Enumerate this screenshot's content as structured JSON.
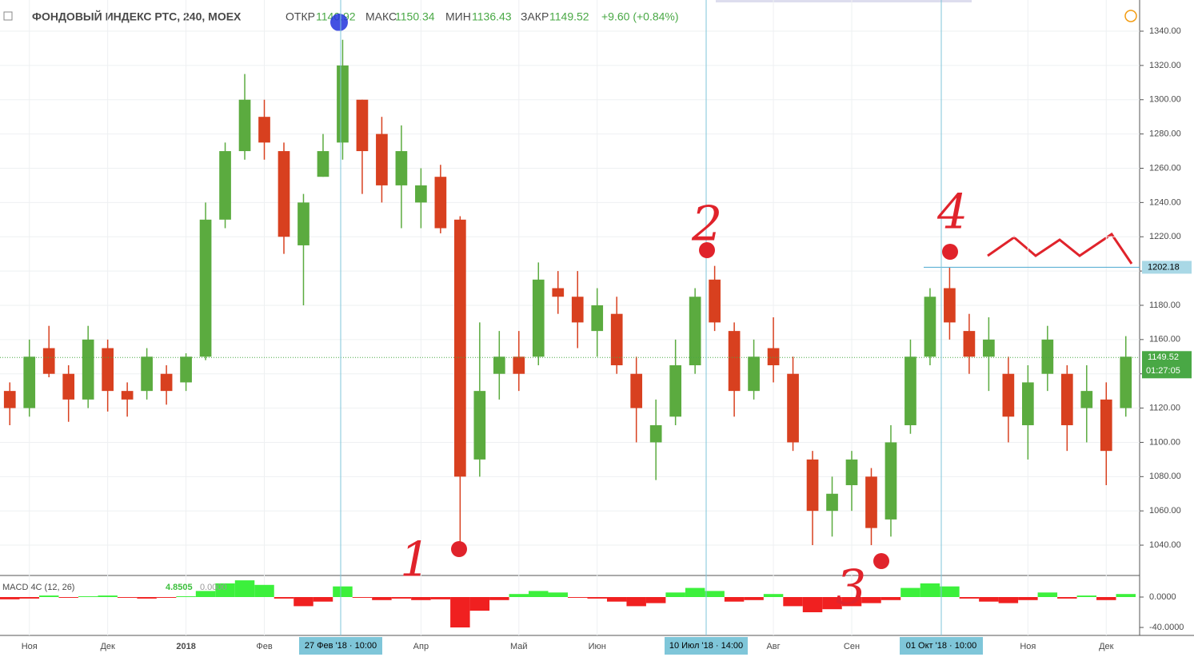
{
  "header": {
    "symbol": "ФОНДОВЫЙ ИНДЕКС РТС, 240, MOEX",
    "ohlc": [
      {
        "label": "ОТКР",
        "value": "1140.92"
      },
      {
        "label": "МАКС",
        "value": "1150.34"
      },
      {
        "label": "МИН",
        "value": "1136.43"
      },
      {
        "label": "ЗАКР",
        "value": "1149.52"
      }
    ],
    "change": "+9.60 (+0.84%)"
  },
  "chart_data": {
    "type": "candlestick",
    "categories": [
      null,
      "Ноя",
      null,
      null,
      null,
      "Дек",
      null,
      null,
      null,
      "2018",
      null,
      null,
      null,
      "Фев",
      null,
      null,
      null,
      null,
      null,
      null,
      null,
      "Апр",
      null,
      null,
      null,
      null,
      "Май",
      null,
      null,
      null,
      "Июн",
      null,
      null,
      null,
      null,
      null,
      null,
      null,
      null,
      "Авг",
      null,
      null,
      null,
      "Сен",
      null,
      null,
      null,
      null,
      null,
      null,
      null,
      null,
      "Ноя",
      null,
      null,
      null,
      "Дек",
      null
    ],
    "open": [
      1130,
      1120,
      1155,
      1140,
      1125,
      1155,
      1130,
      1130,
      1140,
      1135,
      1150,
      1230,
      1270,
      1290,
      1270,
      1215,
      1255,
      1275,
      1300,
      1280,
      1250,
      1240,
      1255,
      1230,
      1090,
      1140,
      1150,
      1150,
      1190,
      1185,
      1165,
      1175,
      1140,
      1100,
      1115,
      1145,
      1195,
      1165,
      1130,
      1155,
      1140,
      1090,
      1060,
      1075,
      1080,
      1055,
      1110,
      1150,
      1190,
      1165,
      1150,
      1140,
      1110,
      1140,
      1140,
      1120,
      1125,
      1120
    ],
    "high": [
      1135,
      1160,
      1168,
      1145,
      1168,
      1160,
      1135,
      1155,
      1145,
      1152,
      1240,
      1275,
      1315,
      1300,
      1275,
      1245,
      1280,
      1335,
      1300,
      1290,
      1285,
      1260,
      1262,
      1232,
      1170,
      1165,
      1165,
      1205,
      1200,
      1200,
      1190,
      1185,
      1150,
      1125,
      1160,
      1190,
      1203,
      1170,
      1160,
      1173,
      1150,
      1095,
      1080,
      1095,
      1085,
      1110,
      1160,
      1190,
      1202,
      1175,
      1173,
      1150,
      1145,
      1168,
      1145,
      1145,
      1135,
      1162
    ],
    "low": [
      1110,
      1115,
      1138,
      1112,
      1120,
      1118,
      1115,
      1125,
      1122,
      1130,
      1148,
      1225,
      1265,
      1265,
      1210,
      1180,
      1255,
      1265,
      1245,
      1240,
      1225,
      1225,
      1222,
      1040,
      1080,
      1125,
      1130,
      1145,
      1175,
      1155,
      1150,
      1140,
      1100,
      1078,
      1110,
      1140,
      1165,
      1115,
      1125,
      1135,
      1095,
      1040,
      1045,
      1060,
      1040,
      1045,
      1105,
      1145,
      1160,
      1140,
      1130,
      1100,
      1090,
      1130,
      1095,
      1100,
      1075,
      1115
    ],
    "close": [
      1120,
      1150,
      1140,
      1125,
      1160,
      1130,
      1125,
      1150,
      1130,
      1150,
      1230,
      1270,
      1300,
      1275,
      1220,
      1240,
      1270,
      1320,
      1270,
      1250,
      1270,
      1250,
      1225,
      1080,
      1130,
      1150,
      1140,
      1195,
      1185,
      1170,
      1180,
      1145,
      1120,
      1110,
      1145,
      1185,
      1170,
      1130,
      1150,
      1145,
      1100,
      1060,
      1070,
      1090,
      1050,
      1100,
      1150,
      1185,
      1170,
      1150,
      1160,
      1115,
      1135,
      1160,
      1110,
      1130,
      1095,
      1150
    ],
    "up_color": "#5bab3f",
    "down_color": "#d8401f",
    "ylim": [
      1022.3,
      1358.2
    ],
    "yticks": [
      {
        "value": 1040,
        "label": "1040.00"
      },
      {
        "value": 1060,
        "label": "1060.00"
      },
      {
        "value": 1080,
        "label": "1080.00"
      },
      {
        "value": 1100,
        "label": "1100.00"
      },
      {
        "value": 1120,
        "label": "1120.00"
      },
      {
        "value": 1140,
        "label": "1140.00"
      },
      {
        "value": 1160,
        "label": "1160.00"
      },
      {
        "value": 1180,
        "label": "1180.00"
      },
      {
        "value": 1200,
        "label": "1200.00"
      },
      {
        "value": 1220,
        "label": "1220.00"
      },
      {
        "value": 1240,
        "label": "1240.00"
      },
      {
        "value": 1260,
        "label": "1260.00"
      },
      {
        "value": 1280,
        "label": "1280.00"
      },
      {
        "value": 1300,
        "label": "1300.00"
      },
      {
        "value": 1320,
        "label": "1320.00"
      },
      {
        "value": 1340,
        "label": "1340.00"
      }
    ],
    "grid": true,
    "level": 1202.18,
    "last_price": 1149.52,
    "timer": "01:27:05",
    "markers": [
      "27 Фев '18 · 10:00",
      "10 Июл '18 · 14:00",
      "01 Окт '18 · 10:00"
    ],
    "annotations": [
      "1",
      "2",
      "3",
      "4"
    ],
    "macd": {
      "name": "MACD 4C (12, 26)",
      "last": "4.8505",
      "zero": "0.0000",
      "up_color": "#3cf03c",
      "down_color": "#f02020",
      "values": [
        -3,
        -2,
        2,
        -1,
        1,
        2,
        -1,
        -2,
        -1,
        1,
        8,
        18,
        22,
        16,
        -2,
        -12,
        -6,
        14,
        -1,
        -4,
        -2,
        -4,
        -3,
        -40,
        -18,
        -4,
        4,
        8,
        6,
        -1,
        -2,
        -6,
        -12,
        -8,
        6,
        12,
        8,
        -6,
        -4,
        4,
        -12,
        -20,
        -16,
        -12,
        -8,
        -4,
        12,
        18,
        14,
        -2,
        -6,
        -8,
        -4,
        6,
        -2,
        2,
        -4,
        4
      ],
      "y2lim": [
        -50.5,
        28.4
      ],
      "y2ticks": [
        {
          "value": 0,
          "label": "0.0000"
        },
        {
          "value": -40,
          "label": "-40.0000"
        }
      ]
    }
  }
}
